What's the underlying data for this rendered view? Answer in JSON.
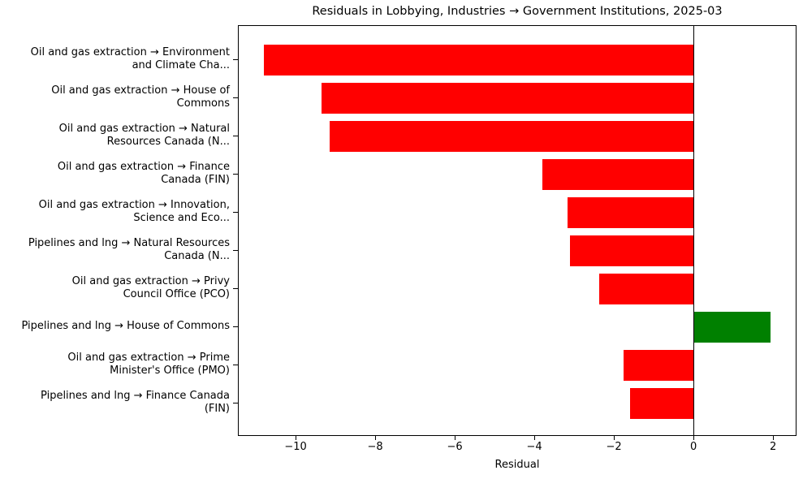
{
  "chart_data": {
    "type": "bar",
    "orientation": "horizontal",
    "title": "Residuals in Lobbying, Industries → Government Institutions, 2025-03",
    "xlabel": "Residual",
    "ylabel": "",
    "xlim": [
      -11.45,
      2.59
    ],
    "xticks": [
      -10,
      -8,
      -6,
      -4,
      -2,
      0,
      2
    ],
    "xtick_labels": [
      "−10",
      "−8",
      "−6",
      "−4",
      "−2",
      "0",
      "2"
    ],
    "grid": false,
    "legend": null,
    "zero_line": true,
    "categories": [
      "Oil and gas extraction → Environment\nand Climate Cha...",
      "Oil and gas extraction → House of\nCommons",
      "Oil and gas extraction → Natural\nResources Canada (N...",
      "Oil and gas extraction → Finance\nCanada (FIN)",
      "Oil and gas extraction → Innovation,\nScience and Eco...",
      "Pipelines and lng → Natural Resources\nCanada (N...",
      "Oil and gas extraction → Privy\nCouncil Office (PCO)",
      "Pipelines and lng → House of Commons",
      "Oil and gas extraction → Prime\nMinister's Office (PMO)",
      "Pipelines and lng → Finance Canada\n(FIN)"
    ],
    "values": [
      -10.82,
      -9.37,
      -9.16,
      -3.82,
      -3.18,
      -3.12,
      -2.39,
      1.92,
      -1.78,
      -1.61
    ],
    "colors": [
      "#ff0000",
      "#ff0000",
      "#ff0000",
      "#ff0000",
      "#ff0000",
      "#ff0000",
      "#ff0000",
      "#008000",
      "#ff0000",
      "#ff0000"
    ],
    "color_rule": {
      "negative": "#ff0000",
      "positive": "#008000"
    }
  }
}
